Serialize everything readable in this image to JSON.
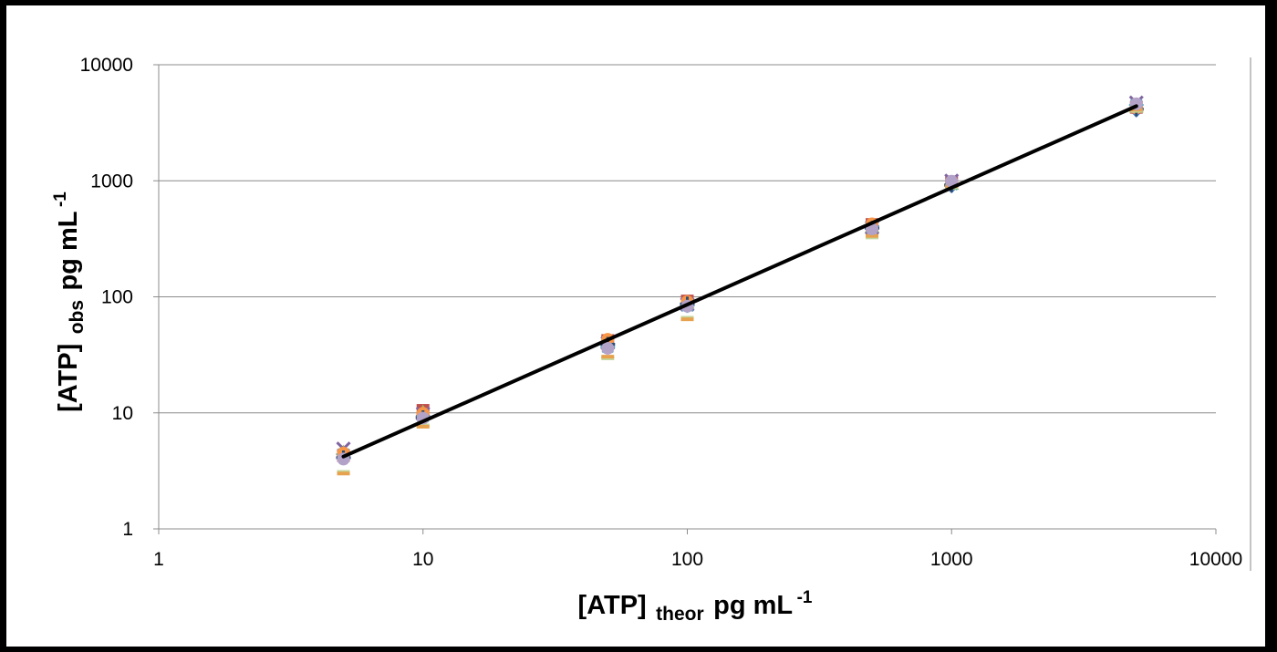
{
  "chart_data": {
    "type": "scatter",
    "x_scale": "log",
    "y_scale": "log",
    "xlim": [
      1,
      10000
    ],
    "ylim": [
      1,
      10000
    ],
    "grid": "horizontal major gridlines",
    "legend": "none",
    "x_ticks": [
      "1",
      "10",
      "100",
      "1000",
      "10000"
    ],
    "y_ticks": [
      "1",
      "10",
      "100",
      "1000",
      "10000"
    ],
    "xlabel": {
      "main": "[ATP]",
      "sub": "theor",
      "unit": "pg mL",
      "sup": "-1"
    },
    "ylabel": {
      "main": "[ATP]",
      "sub": "obs",
      "unit": "pg mL",
      "sup": "-1"
    },
    "series": [
      {
        "marker": "diamond",
        "color": "#4f81bd",
        "x": [
          5,
          10,
          50,
          100,
          500,
          1000,
          5000
        ],
        "y": [
          4.2,
          9.5,
          38,
          88,
          410,
          900,
          4050
        ]
      },
      {
        "marker": "square",
        "color": "#c0504d",
        "x": [
          5,
          10,
          50,
          100,
          500,
          1000,
          5000
        ],
        "y": [
          4.3,
          10.5,
          42,
          92,
          420,
          980,
          4300
        ]
      },
      {
        "marker": "triangle",
        "color": "#9bbb59",
        "x": [
          5,
          10,
          50,
          100,
          500,
          1000,
          5000
        ],
        "y": [
          4.6,
          10.2,
          41,
          90,
          405,
          950,
          4400
        ]
      },
      {
        "marker": "x",
        "color": "#8064a2",
        "x": [
          5,
          10,
          50,
          100,
          500,
          1000,
          5000
        ],
        "y": [
          4.9,
          9.8,
          40,
          86,
          395,
          1000,
          4700
        ]
      },
      {
        "marker": "star",
        "color": "#4bacc6",
        "x": [
          5,
          10,
          50,
          100,
          500,
          1000,
          5000
        ],
        "y": [
          4.4,
          9.3,
          37,
          84,
          400,
          930,
          4500
        ]
      },
      {
        "marker": "circle",
        "color": "#f79646",
        "x": [
          5,
          10,
          50,
          100,
          500,
          1000,
          5000
        ],
        "y": [
          4.5,
          9.9,
          43,
          91,
          425,
          960,
          4250
        ]
      },
      {
        "marker": "plus",
        "color": "#2c4d75",
        "x": [
          5,
          10,
          50,
          100,
          500,
          1000,
          5000
        ],
        "y": [
          4.1,
          9.1,
          39,
          87,
          390,
          920,
          4150
        ]
      },
      {
        "marker": "dash",
        "color": "#c3d69b",
        "x": [
          5,
          10,
          50,
          100,
          500,
          1000,
          5000
        ],
        "y": [
          3.1,
          7.8,
          29.5,
          66,
          325,
          880,
          4000
        ]
      },
      {
        "marker": "dash",
        "color": "#e6a24f",
        "x": [
          5,
          10,
          50,
          100,
          500,
          1000,
          5000
        ],
        "y": [
          3.0,
          7.6,
          30.5,
          64,
          335,
          900,
          4100
        ]
      },
      {
        "marker": "circle",
        "color": "#b3a2c7",
        "x": [
          5,
          10,
          50,
          100,
          500,
          1000,
          5000
        ],
        "y": [
          4.0,
          9.0,
          36,
          83,
          385,
          990,
          4600
        ]
      }
    ],
    "fit_line": {
      "color": "#000000",
      "x": [
        5,
        5000
      ],
      "y": [
        4.2,
        4400
      ]
    }
  }
}
